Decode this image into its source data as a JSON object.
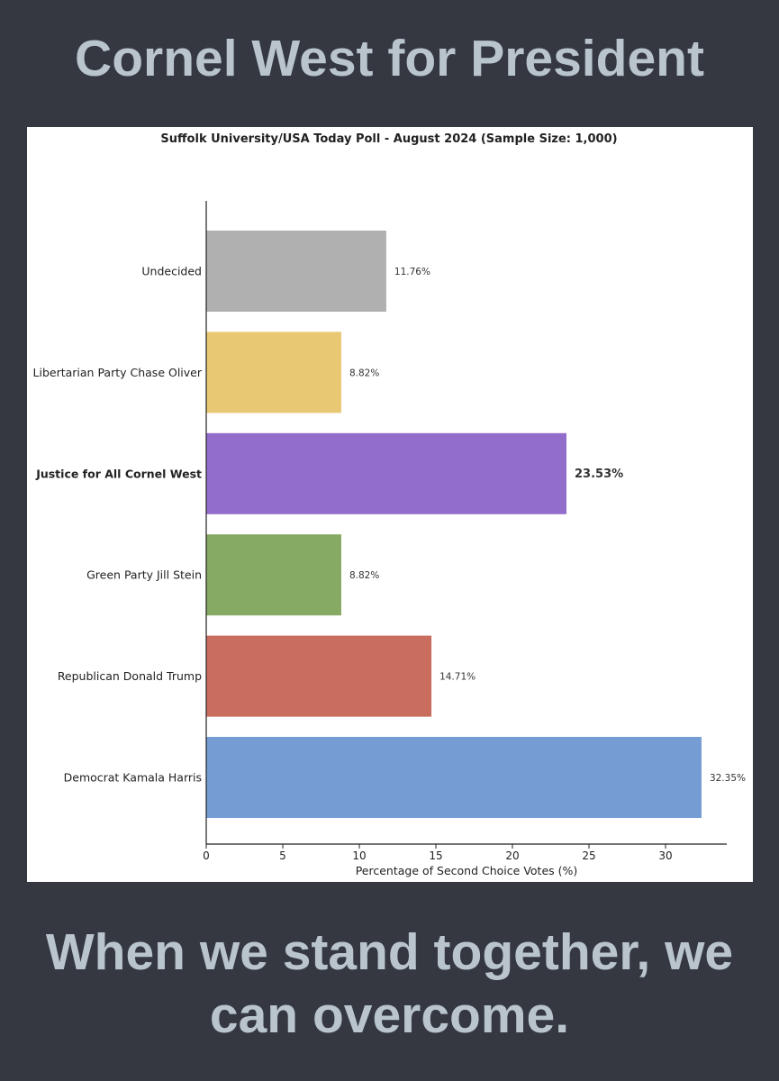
{
  "header": {
    "title": "Cornel West for President"
  },
  "footer": {
    "tagline": "When we stand together, we can overcome."
  },
  "chart_data": {
    "type": "bar",
    "orientation": "horizontal",
    "title": "Suffolk University/USA Today Poll - August 2024 (Sample Size: 1,000)",
    "xlabel": "Percentage of Second Choice Votes (%)",
    "ylabel": "",
    "xlim": [
      0,
      34
    ],
    "xticks": [
      0,
      5,
      10,
      15,
      20,
      25,
      30
    ],
    "grid": false,
    "categories": [
      "Undecided",
      "Libertarian Party Chase Oliver",
      "Justice for All Cornel West",
      "Green Party Jill Stein",
      "Republican Donald Trump",
      "Democrat Kamala Harris"
    ],
    "values": [
      11.76,
      8.82,
      23.53,
      8.82,
      14.71,
      32.35
    ],
    "value_labels": [
      "11.76%",
      "8.82%",
      "23.53%",
      "8.82%",
      "14.71%",
      "32.35%"
    ],
    "colors": [
      "#b0b0b0",
      "#e9c873",
      "#936dcc",
      "#86a963",
      "#c96d5f",
      "#759dd4"
    ],
    "highlighted": "Justice for All Cornel West"
  }
}
